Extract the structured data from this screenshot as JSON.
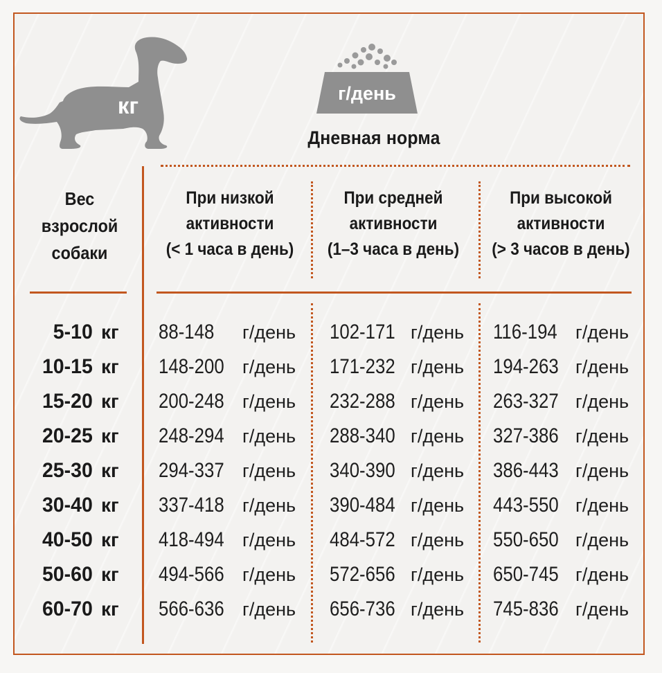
{
  "icons": {
    "dog_label": "кг",
    "bowl_label": "г/день",
    "dog_icon": "dachshund-silhouette",
    "bowl_icon": "food-bowl"
  },
  "daily_norm_title": "Дневная норма",
  "weight_header": [
    "Вес",
    "взрослой",
    "собаки"
  ],
  "columns": [
    {
      "lines": [
        "При низкой",
        "активности",
        "(< 1 часа в день)"
      ]
    },
    {
      "lines": [
        "При средней",
        "активности",
        "(1–3 часа в день)"
      ]
    },
    {
      "lines": [
        "При высокой",
        "активности",
        "(> 3 часов в день)"
      ]
    }
  ],
  "rows": [
    {
      "weight": "5-10",
      "weight_unit": "кг",
      "values": [
        "88-148",
        "102-171",
        "116-194"
      ],
      "unit": "г/день"
    },
    {
      "weight": "10-15",
      "weight_unit": "кг",
      "values": [
        "148-200",
        "171-232",
        "194-263"
      ],
      "unit": "г/день"
    },
    {
      "weight": "15-20",
      "weight_unit": "кг",
      "values": [
        "200-248",
        "232-288",
        "263-327"
      ],
      "unit": "г/день"
    },
    {
      "weight": "20-25",
      "weight_unit": "кг",
      "values": [
        "248-294",
        "288-340",
        "327-386"
      ],
      "unit": "г/день"
    },
    {
      "weight": "25-30",
      "weight_unit": "кг",
      "values": [
        "294-337",
        "340-390",
        "386-443"
      ],
      "unit": "г/день"
    },
    {
      "weight": "30-40",
      "weight_unit": "кг",
      "values": [
        "337-418",
        "390-484",
        "443-550"
      ],
      "unit": "г/день"
    },
    {
      "weight": "40-50",
      "weight_unit": "кг",
      "values": [
        "418-494",
        "484-572",
        "550-650"
      ],
      "unit": "г/день"
    },
    {
      "weight": "50-60",
      "weight_unit": "кг",
      "values": [
        "494-566",
        "572-656",
        "650-745"
      ],
      "unit": "г/день"
    },
    {
      "weight": "60-70",
      "weight_unit": "кг",
      "values": [
        "566-636",
        "656-736",
        "745-836"
      ],
      "unit": "г/день"
    }
  ],
  "colors": {
    "accent": "#c2571f",
    "icon_gray": "#8f8f8f",
    "background": "#f3f2f0",
    "text": "#1a1a1a"
  }
}
